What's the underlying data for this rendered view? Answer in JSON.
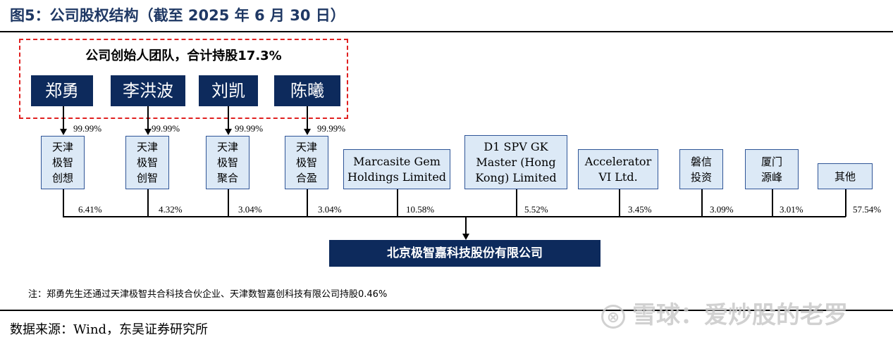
{
  "title": "图5：公司股权结构（截至 2025 年 6 月 30 日）",
  "founders": {
    "caption": "公司创始人团队，合计持股17.3%",
    "people": [
      "郑勇",
      "李洪波",
      "刘凯",
      "陈曦"
    ],
    "stakes": [
      "99.99%",
      "99.99%",
      "99.99%",
      "99.99%"
    ]
  },
  "shareholders": [
    {
      "name": "天津\n极智\n创想",
      "pct": "6.41%"
    },
    {
      "name": "天津\n极智\n创智",
      "pct": "4.32%"
    },
    {
      "name": "天津\n极智\n聚合",
      "pct": "3.04%"
    },
    {
      "name": "天津\n极智\n合盈",
      "pct": "3.04%"
    },
    {
      "name": "Marcasite Gem\nHoldings Limited",
      "pct": "10.58%"
    },
    {
      "name": "D1 SPV GK\nMaster (Hong\nKong) Limited",
      "pct": "5.52%"
    },
    {
      "name": "Accelerator\nVI Ltd.",
      "pct": "3.45%"
    },
    {
      "name": "磐信\n投资",
      "pct": "3.09%"
    },
    {
      "name": "厦门\n源峰",
      "pct": "3.01%"
    },
    {
      "name": "其他",
      "pct": "57.54%"
    }
  ],
  "company": "北京极智嘉科技股份有限公司",
  "note": "注：郑勇先生还通过天津极智共合科技合伙企业、天津数智嘉创科技有限公司持股0.46%",
  "source": "数据来源：Wind，东吴证券研究所",
  "watermark": "雪球：爱炒股的老罗",
  "colors": {
    "navy": "#0d2a5c",
    "light_blue": "#dce9f6",
    "dash_red": "#e02020",
    "title_blue": "#1f3864"
  }
}
